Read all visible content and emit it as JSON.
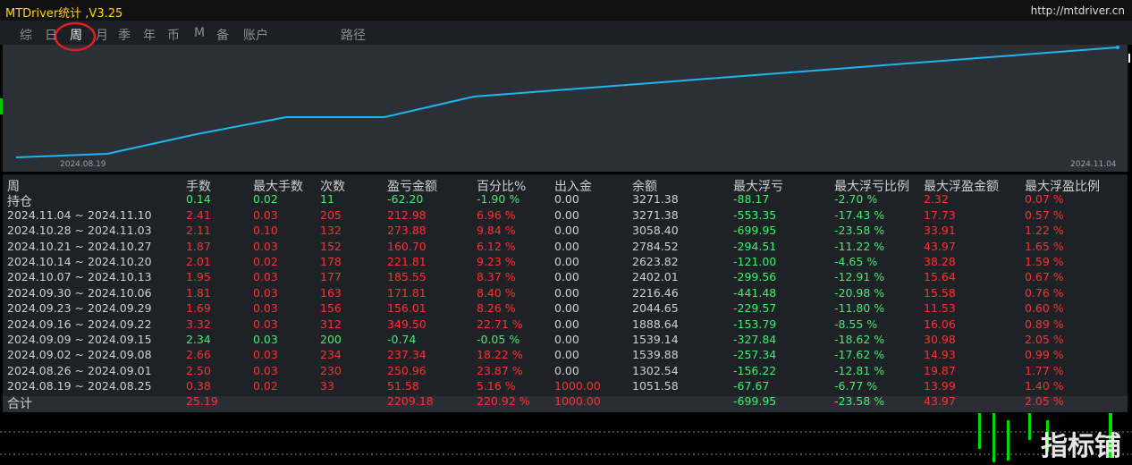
{
  "header": {
    "title": "MTDriver统计 ,V3.25",
    "url": "http://mtdriver.cn"
  },
  "tabs": [
    "综",
    "日",
    "周",
    "月",
    "季",
    "年",
    "币",
    "M",
    "备",
    "账户",
    "路径"
  ],
  "chart": {
    "start_label": "2024.08.19",
    "end_label": "2024.11.04"
  },
  "table": {
    "columns": [
      "周",
      "手数",
      "最大手数",
      "次数",
      "盈亏金额",
      "百分比%",
      "出入金",
      "余额",
      "最大浮亏",
      "最大浮亏比例",
      "最大浮盈金额",
      "最大浮盈比例"
    ],
    "rows": [
      [
        "持仓",
        "0.14",
        "0.02",
        "11",
        "-62.20",
        "-1.90 %",
        "0.00",
        "3271.38",
        "-88.17",
        "-2.70 %",
        "2.32",
        "0.07 %"
      ],
      [
        "2024.11.04 ~ 2024.11.10",
        "2.41",
        "0.03",
        "205",
        "212.98",
        "6.96 %",
        "0.00",
        "3271.38",
        "-553.35",
        "-17.43 %",
        "17.73",
        "0.57 %"
      ],
      [
        "2024.10.28 ~ 2024.11.03",
        "2.11",
        "0.10",
        "132",
        "273.88",
        "9.84 %",
        "0.00",
        "3058.40",
        "-699.95",
        "-23.58 %",
        "33.91",
        "1.22 %"
      ],
      [
        "2024.10.21 ~ 2024.10.27",
        "1.87",
        "0.03",
        "152",
        "160.70",
        "6.12 %",
        "0.00",
        "2784.52",
        "-294.51",
        "-11.22 %",
        "43.97",
        "1.65 %"
      ],
      [
        "2024.10.14 ~ 2024.10.20",
        "2.01",
        "0.02",
        "178",
        "221.81",
        "9.23 %",
        "0.00",
        "2623.82",
        "-121.00",
        "-4.65 %",
        "38.28",
        "1.59 %"
      ],
      [
        "2024.10.07 ~ 2024.10.13",
        "1.95",
        "0.03",
        "177",
        "185.55",
        "8.37 %",
        "0.00",
        "2402.01",
        "-299.56",
        "-12.91 %",
        "15.64",
        "0.67 %"
      ],
      [
        "2024.09.30 ~ 2024.10.06",
        "1.81",
        "0.03",
        "163",
        "171.81",
        "8.40 %",
        "0.00",
        "2216.46",
        "-441.48",
        "-20.98 %",
        "15.58",
        "0.76 %"
      ],
      [
        "2024.09.23 ~ 2024.09.29",
        "1.69",
        "0.03",
        "156",
        "156.01",
        "8.26 %",
        "0.00",
        "2044.65",
        "-229.57",
        "-11.80 %",
        "11.53",
        "0.60 %"
      ],
      [
        "2024.09.16 ~ 2024.09.22",
        "3.32",
        "0.03",
        "312",
        "349.50",
        "22.71 %",
        "0.00",
        "1888.64",
        "-153.79",
        "-8.55 %",
        "16.06",
        "0.89 %"
      ],
      [
        "2024.09.09 ~ 2024.09.15",
        "2.34",
        "0.03",
        "200",
        "-0.74",
        "-0.05 %",
        "0.00",
        "1539.14",
        "-327.84",
        "-18.62 %",
        "30.98",
        "2.05 %"
      ],
      [
        "2024.09.02 ~ 2024.09.08",
        "2.66",
        "0.03",
        "234",
        "237.34",
        "18.22 %",
        "0.00",
        "1539.88",
        "-257.34",
        "-17.62 %",
        "14.93",
        "0.99 %"
      ],
      [
        "2024.08.26 ~ 2024.09.01",
        "2.50",
        "0.03",
        "230",
        "250.96",
        "23.87 %",
        "0.00",
        "1302.54",
        "-156.22",
        "-12.81 %",
        "19.87",
        "1.77 %"
      ],
      [
        "2024.08.19 ~ 2024.08.25",
        "0.38",
        "0.02",
        "33",
        "51.58",
        "5.16 %",
        "1000.00",
        "1051.58",
        "-67.67",
        "-6.77 %",
        "13.99",
        "1.40 %"
      ]
    ],
    "total": {
      "label": "合计",
      "cells": {
        "1": "25.19",
        "4": "2209.18",
        "5": "220.92 %",
        "6": "1000.00",
        "8": "-699.95",
        "9": "-23.58 %",
        "10": "43.97",
        "11": "2.05 %"
      }
    }
  },
  "watermark": "指标铺"
}
